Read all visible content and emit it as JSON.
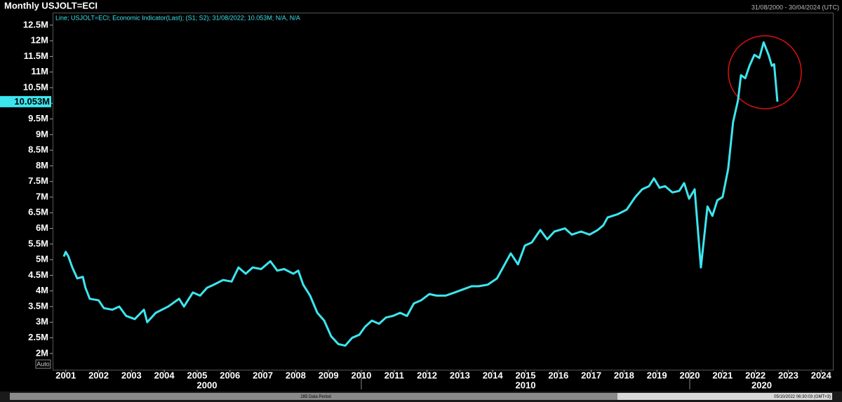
{
  "chart_data": {
    "type": "line",
    "title": "Monthly USJOLT=ECI",
    "date_range": "31/08/2000 - 30/04/2024 (UTC)",
    "legend_text": "Line; USJOLT=ECI; Economic Indicator(Last); (S1; S2); 31/08/2022; 10.053M; N/A, N/A",
    "x": [
      2000.94,
      2001.0,
      2001.08,
      2001.2,
      2001.35,
      2001.52,
      2001.6,
      2001.73,
      2002.0,
      2002.16,
      2002.42,
      2002.63,
      2002.84,
      2003.1,
      2003.38,
      2003.48,
      2003.74,
      2004.12,
      2004.45,
      2004.6,
      2004.87,
      2005.09,
      2005.3,
      2005.51,
      2005.79,
      2006.05,
      2006.26,
      2006.48,
      2006.69,
      2006.95,
      2007.23,
      2007.44,
      2007.65,
      2007.93,
      2008.08,
      2008.23,
      2008.44,
      2008.66,
      2008.87,
      2009.08,
      2009.3,
      2009.51,
      2009.72,
      2009.94,
      2010.11,
      2010.32,
      2010.54,
      2010.75,
      2010.96,
      2011.18,
      2011.39,
      2011.6,
      2011.82,
      2012.07,
      2012.29,
      2012.57,
      2012.84,
      2013.1,
      2013.36,
      2013.57,
      2013.85,
      2014.13,
      2014.34,
      2014.55,
      2014.77,
      2014.98,
      2015.19,
      2015.45,
      2015.66,
      2015.88,
      2016.2,
      2016.41,
      2016.69,
      2016.95,
      2017.2,
      2017.37,
      2017.5,
      2017.8,
      2018.08,
      2018.34,
      2018.55,
      2018.76,
      2018.91,
      2019.08,
      2019.25,
      2019.47,
      2019.68,
      2019.83,
      2019.98,
      2020.15,
      2020.34,
      2020.54,
      2020.69,
      2020.84,
      2021.0,
      2021.17,
      2021.32,
      2021.47,
      2021.56,
      2021.69,
      2021.82,
      2021.97,
      2022.12,
      2022.25,
      2022.4,
      2022.5,
      2022.57,
      2022.67
    ],
    "series": [
      {
        "color": "#3ce6ef",
        "values": [
          5.1,
          5.25,
          5.1,
          4.75,
          4.4,
          4.45,
          4.1,
          3.75,
          3.7,
          3.45,
          3.4,
          3.5,
          3.2,
          3.1,
          3.4,
          3.0,
          3.3,
          3.5,
          3.75,
          3.5,
          3.95,
          3.85,
          4.1,
          4.2,
          4.35,
          4.3,
          4.75,
          4.55,
          4.75,
          4.7,
          4.95,
          4.65,
          4.7,
          4.55,
          4.65,
          4.2,
          3.85,
          3.3,
          3.05,
          2.55,
          2.3,
          2.25,
          2.5,
          2.6,
          2.85,
          3.05,
          2.95,
          3.15,
          3.2,
          3.3,
          3.2,
          3.6,
          3.7,
          3.9,
          3.85,
          3.85,
          3.95,
          4.05,
          4.15,
          4.15,
          4.2,
          4.4,
          4.8,
          5.2,
          4.85,
          5.45,
          5.55,
          5.95,
          5.65,
          5.9,
          6.0,
          5.8,
          5.9,
          5.8,
          5.95,
          6.1,
          6.35,
          6.45,
          6.6,
          7.0,
          7.25,
          7.35,
          7.6,
          7.3,
          7.35,
          7.15,
          7.2,
          7.45,
          6.95,
          7.25,
          4.75,
          6.7,
          6.4,
          6.9,
          7.0,
          7.9,
          9.4,
          10.1,
          10.9,
          10.8,
          11.2,
          11.55,
          11.45,
          11.95,
          11.55,
          11.2,
          11.25,
          10.053
        ]
      }
    ],
    "current_value": {
      "value": 10.053,
      "label": "10.053M"
    },
    "xlim": [
      2000.6,
      2024.38
    ],
    "xticks": [
      2001,
      2002,
      2003,
      2004,
      2005,
      2006,
      2007,
      2008,
      2009,
      2010,
      2011,
      2012,
      2013,
      2014,
      2015,
      2016,
      2017,
      2018,
      2019,
      2020,
      2021,
      2022,
      2023,
      2024
    ],
    "x_groups": [
      2000,
      2010,
      2020
    ],
    "ylim": [
      1.48,
      12.9
    ],
    "yticks": [
      {
        "value": 2,
        "label": "2M"
      },
      {
        "value": 2.5,
        "label": "2.5M"
      },
      {
        "value": 3,
        "label": "3M"
      },
      {
        "value": 3.5,
        "label": "3.5M"
      },
      {
        "value": 4,
        "label": "4M"
      },
      {
        "value": 4.5,
        "label": "4.5M"
      },
      {
        "value": 5,
        "label": "5M"
      },
      {
        "value": 5.5,
        "label": "5.5M"
      },
      {
        "value": 6,
        "label": "6M"
      },
      {
        "value": 6.5,
        "label": "6.5M"
      },
      {
        "value": 7,
        "label": "7M"
      },
      {
        "value": 7.5,
        "label": "7.5M"
      },
      {
        "value": 8,
        "label": "8M"
      },
      {
        "value": 8.5,
        "label": "8.5M"
      },
      {
        "value": 9,
        "label": "9M"
      },
      {
        "value": 9.5,
        "label": "9.5M"
      },
      {
        "value": 10,
        "label": "10M"
      },
      {
        "value": 10.5,
        "label": "10.5M"
      },
      {
        "value": 11,
        "label": "11M"
      },
      {
        "value": 11.5,
        "label": "11.5M"
      },
      {
        "value": 12,
        "label": "12M"
      },
      {
        "value": 12.5,
        "label": "12.5M"
      }
    ],
    "grid": false,
    "scale_mode": "Auto",
    "data_period_label": "285 Data Period",
    "timestamp": "05/10/2022 06:30:03 (GMT+3)"
  }
}
